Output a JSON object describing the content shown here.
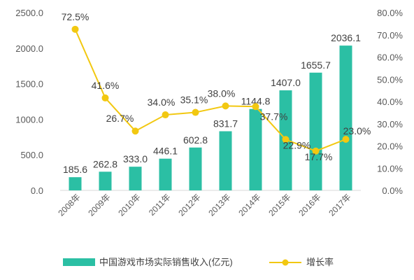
{
  "chart_data": {
    "type": "bar+line",
    "categories": [
      "2008年",
      "2009年",
      "2010年",
      "2011年",
      "2012年",
      "2013年",
      "2014年",
      "2015年",
      "2016年",
      "2017年"
    ],
    "series": [
      {
        "name": "中国游戏市场实际销售收入(亿元)",
        "type": "bar",
        "axis": "left",
        "values": [
          185.6,
          262.8,
          333.0,
          446.1,
          602.8,
          831.7,
          1144.8,
          1407.0,
          1655.7,
          2036.1
        ],
        "labels": [
          "185.6",
          "262.8",
          "333.0",
          "446.1",
          "602.8",
          "831.7",
          "1144.8",
          "1407.0",
          "1655.7",
          "2036.1"
        ]
      },
      {
        "name": "增长率",
        "type": "line",
        "axis": "right",
        "values": [
          72.5,
          41.6,
          26.7,
          34.0,
          35.1,
          38.0,
          37.7,
          22.9,
          17.7,
          23.0
        ],
        "labels": [
          "72.5%",
          "41.6%",
          "26.7%",
          "34.0%",
          "35.1%",
          "38.0%",
          "37.7%",
          "22.9%",
          "17.7%",
          "23.0%"
        ]
      }
    ],
    "y_left": {
      "range": [
        0,
        2500
      ],
      "ticks": [
        0,
        500,
        1000,
        1500,
        2000,
        2500
      ],
      "tick_labels": [
        "0.0",
        "500.0",
        "1000.0",
        "1500.0",
        "2000.0",
        "2500.0"
      ]
    },
    "y_right": {
      "range": [
        0,
        80
      ],
      "ticks": [
        0,
        10,
        20,
        30,
        40,
        50,
        60,
        70,
        80
      ],
      "tick_labels": [
        "0.0%",
        "10.0%",
        "20.0%",
        "30.0%",
        "40.0%",
        "50.0%",
        "60.0%",
        "70.0%",
        "80.0%"
      ]
    },
    "grid": false,
    "legend": "bottom",
    "colors": {
      "bar": "#2BBFA4",
      "line": "#F2C811",
      "text": "#404040",
      "axis": "#595959"
    }
  }
}
